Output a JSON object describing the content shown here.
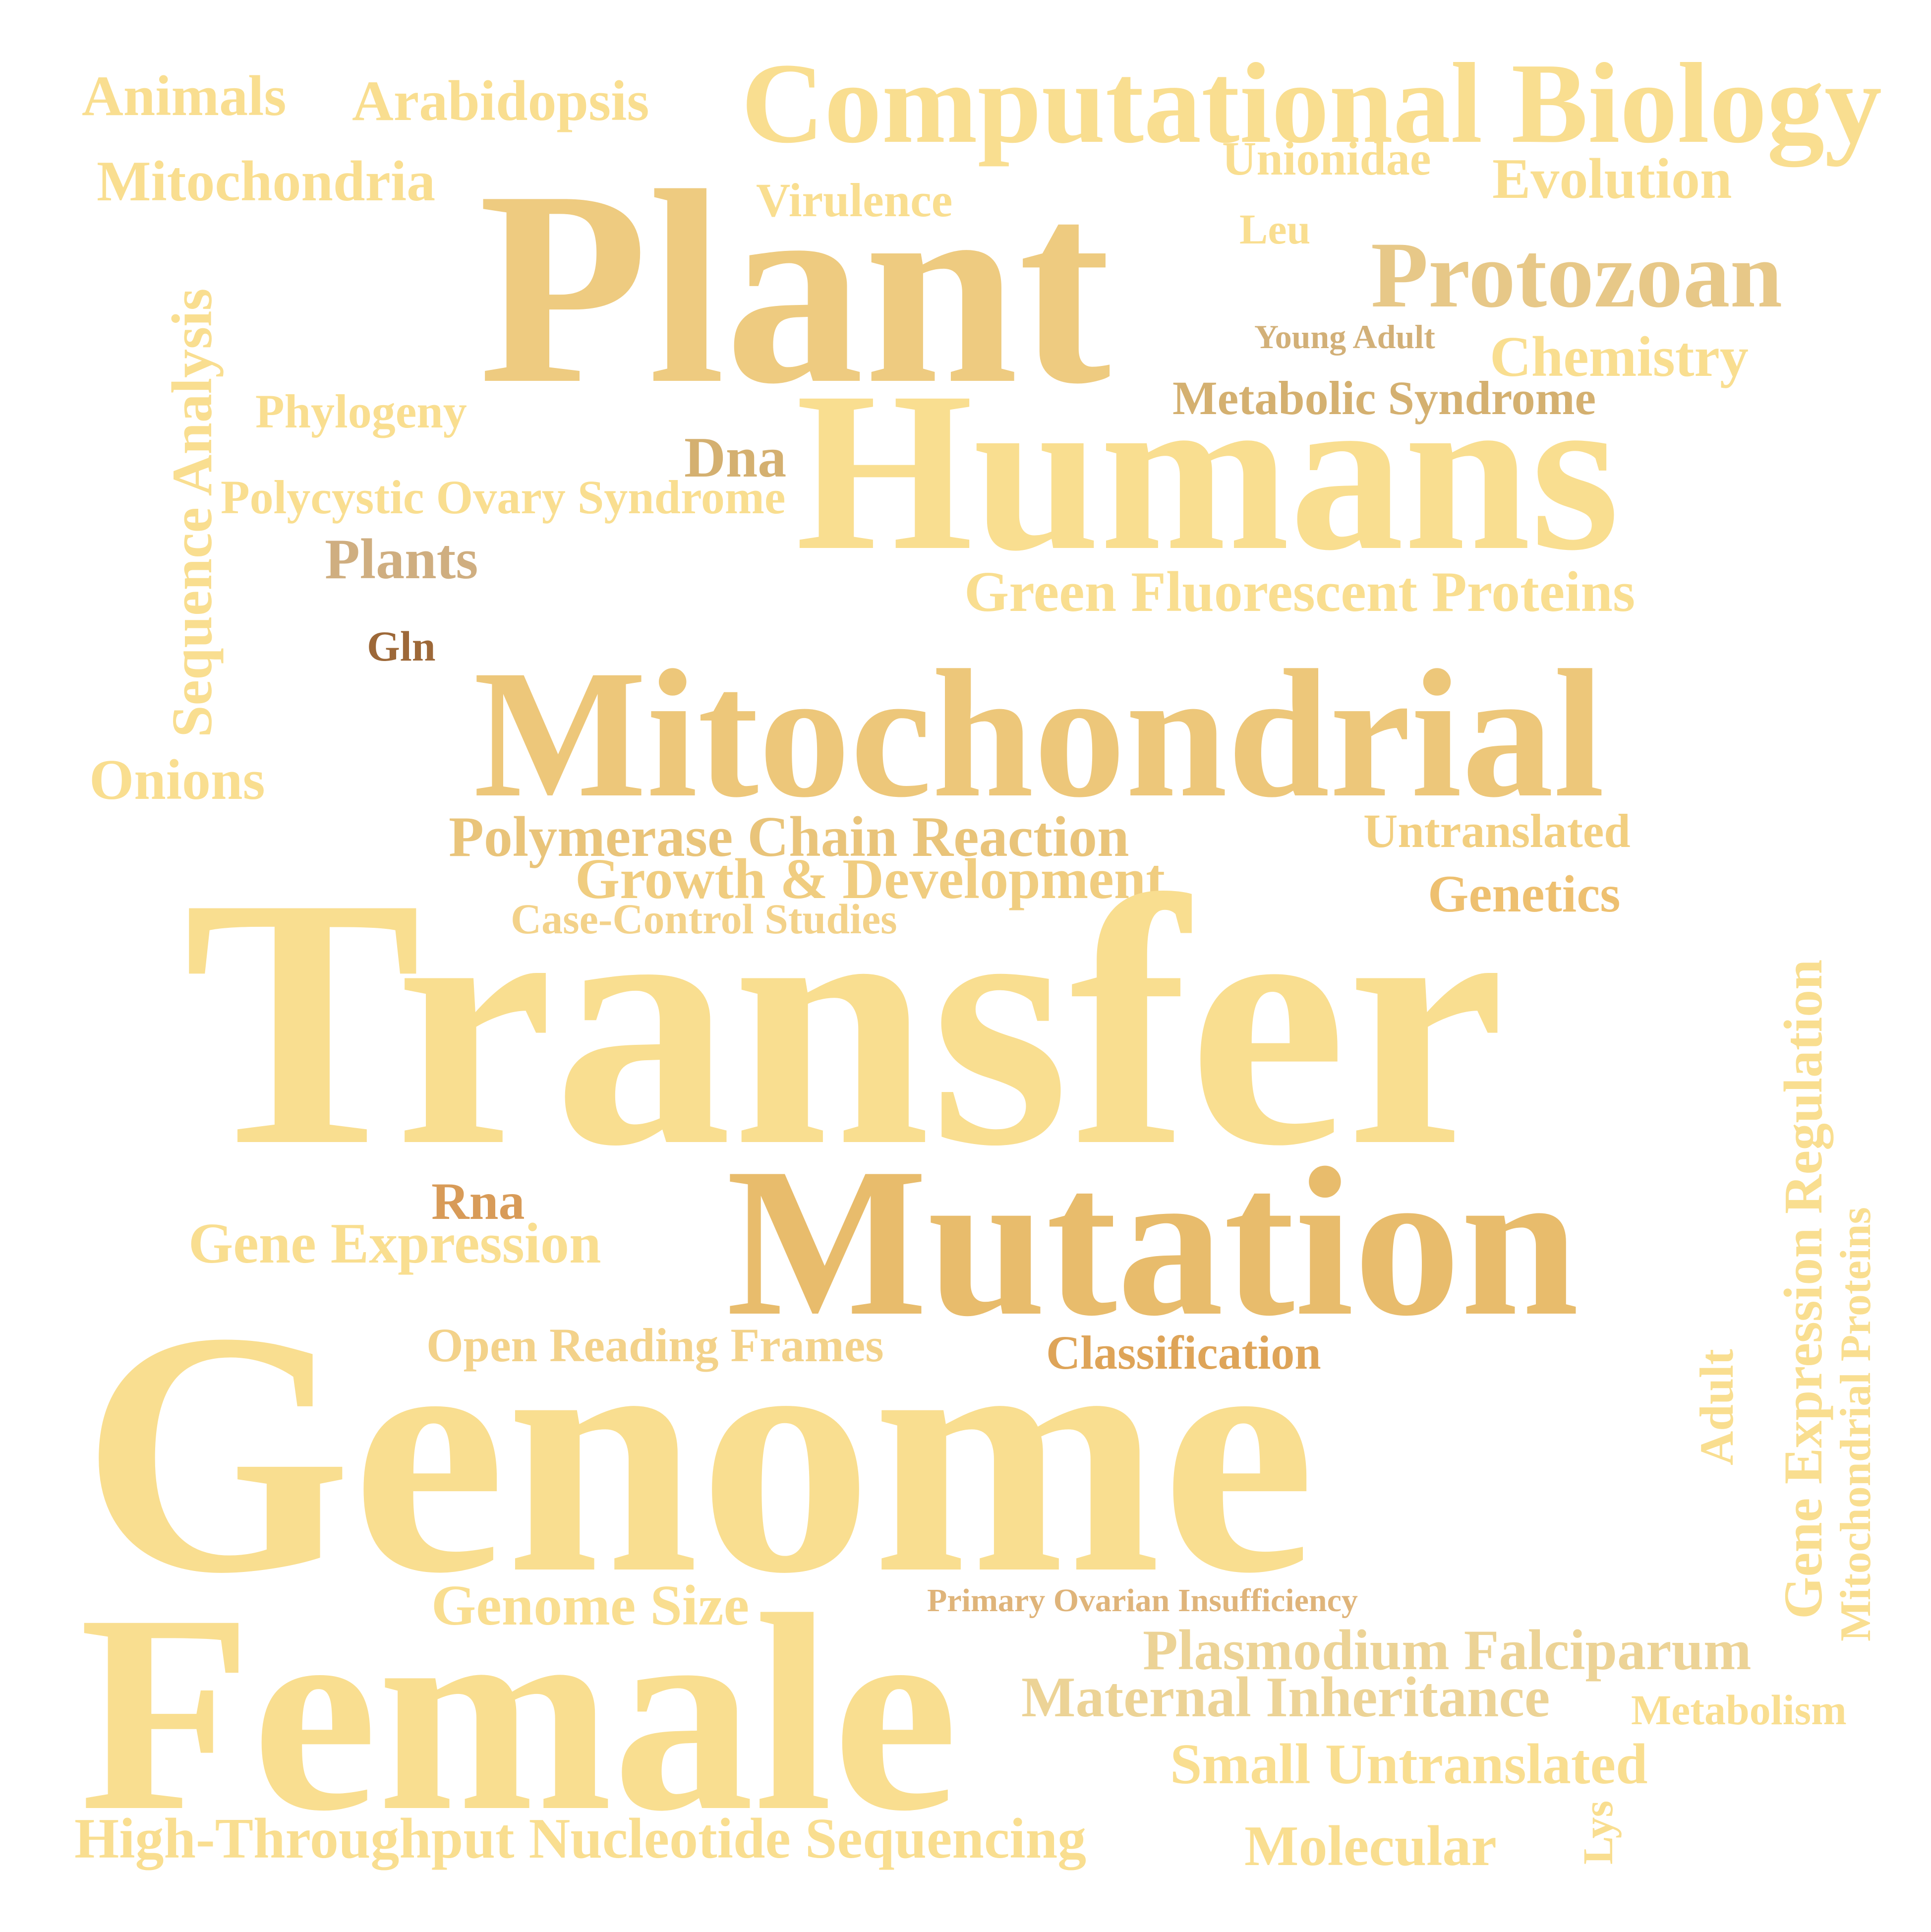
{
  "words": [
    {
      "text": "Animals",
      "color": "#f9de90"
    },
    {
      "text": "Arabidopsis",
      "color": "#f9de90"
    },
    {
      "text": "Computational Biology",
      "color": "#f9de90"
    },
    {
      "text": "Mitochondria",
      "color": "#f9de90"
    },
    {
      "text": "Plant",
      "color": "#eecb80"
    },
    {
      "text": "Unionidae",
      "color": "#f9de90"
    },
    {
      "text": "Evolution",
      "color": "#f9de90"
    },
    {
      "text": "Virulence",
      "color": "#f9de90"
    },
    {
      "text": "Leu",
      "color": "#f9de90"
    },
    {
      "text": "Protozoan",
      "color": "#e7c888"
    },
    {
      "text": "Sequence Analysis",
      "color": "#f9de90"
    },
    {
      "text": "Young Adult",
      "color": "#d2b078"
    },
    {
      "text": "Chemistry",
      "color": "#f9de90"
    },
    {
      "text": "Phylogeny",
      "color": "#f9de90"
    },
    {
      "text": "Metabolic Syndrome",
      "color": "#d4b070"
    },
    {
      "text": "Humans",
      "color": "#f9de90"
    },
    {
      "text": "Dna",
      "color": "#d4b070"
    },
    {
      "text": "Polycystic Ovary Syndrome",
      "color": "#f9de90"
    },
    {
      "text": "Plants",
      "color": "#cfae80"
    },
    {
      "text": "Green Fluorescent Proteins",
      "color": "#f9de90"
    },
    {
      "text": "Gln",
      "color": "#9d6838"
    },
    {
      "text": "Mitochondrial",
      "color": "#edc77a"
    },
    {
      "text": "Onions",
      "color": "#f9de90"
    },
    {
      "text": "Polymerase Chain Reaction",
      "color": "#e9c47a"
    },
    {
      "text": "Untranslated",
      "color": "#f2cf80"
    },
    {
      "text": "Growth & Development",
      "color": "#f0cd80"
    },
    {
      "text": "Genetics",
      "color": "#eec070"
    },
    {
      "text": "Case-Control Studies",
      "color": "#f3d28a"
    },
    {
      "text": "Transfer",
      "color": "#f9de90"
    },
    {
      "text": "Gene Expression Regulation",
      "color": "#f9de90"
    },
    {
      "text": "Mitochondrial Proteins",
      "color": "#f9de90"
    },
    {
      "text": "Rna",
      "color": "#d89b58"
    },
    {
      "text": "Mutation",
      "color": "#e8bc6c"
    },
    {
      "text": "Gene Expression",
      "color": "#f9de90"
    },
    {
      "text": "Open Reading Frames",
      "color": "#f3d28a"
    },
    {
      "text": "Classification",
      "color": "#dea458"
    },
    {
      "text": "Adult",
      "color": "#f9de90"
    },
    {
      "text": "Genome",
      "color": "#f9de90"
    },
    {
      "text": "Primary Ovarian Insufficiency",
      "color": "#dfb47a"
    },
    {
      "text": "Genome Size",
      "color": "#f9de90"
    },
    {
      "text": "Female",
      "color": "#f9de90"
    },
    {
      "text": "Plasmodium Falciparum",
      "color": "#ecd396"
    },
    {
      "text": "Maternal Inheritance",
      "color": "#ecd396"
    },
    {
      "text": "Metabolism",
      "color": "#f9de90"
    },
    {
      "text": "Small Untranslated",
      "color": "#f9de90"
    },
    {
      "text": "Lys",
      "color": "#f9de90"
    },
    {
      "text": "High-Throughput Nucleotide Sequencing",
      "color": "#f9de90"
    },
    {
      "text": "Molecular",
      "color": "#f9de90"
    }
  ]
}
